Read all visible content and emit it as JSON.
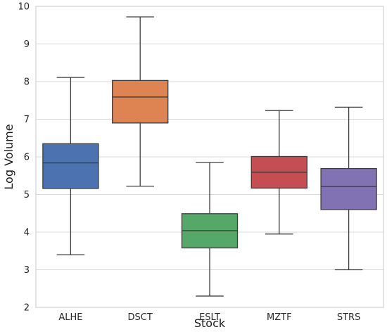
{
  "chart_data": {
    "type": "box",
    "xlabel": "Stock",
    "ylabel": "Log Volume",
    "ylim": [
      2,
      10
    ],
    "yticks": [
      2,
      3,
      4,
      5,
      6,
      7,
      8,
      9,
      10
    ],
    "grid": true,
    "categories": [
      "ALHE",
      "DSCT",
      "ESLT",
      "MZTF",
      "STRS"
    ],
    "boxes": [
      {
        "category": "ALHE",
        "min": 3.4,
        "q1": 5.16,
        "median": 5.84,
        "q3": 6.35,
        "max": 8.11,
        "color": "#4c72b0"
      },
      {
        "category": "DSCT",
        "min": 5.22,
        "q1": 6.9,
        "median": 7.59,
        "q3": 8.03,
        "max": 9.72,
        "color": "#dd8452"
      },
      {
        "category": "ESLT",
        "min": 2.3,
        "q1": 3.58,
        "median": 4.04,
        "q3": 4.49,
        "max": 5.85,
        "color": "#55a868"
      },
      {
        "category": "MZTF",
        "min": 3.95,
        "q1": 5.17,
        "median": 5.59,
        "q3": 6.01,
        "max": 7.23,
        "color": "#c44e52"
      },
      {
        "category": "STRS",
        "min": 3.0,
        "q1": 4.6,
        "median": 5.21,
        "q3": 5.69,
        "max": 7.32,
        "color": "#8172b3"
      }
    ]
  }
}
